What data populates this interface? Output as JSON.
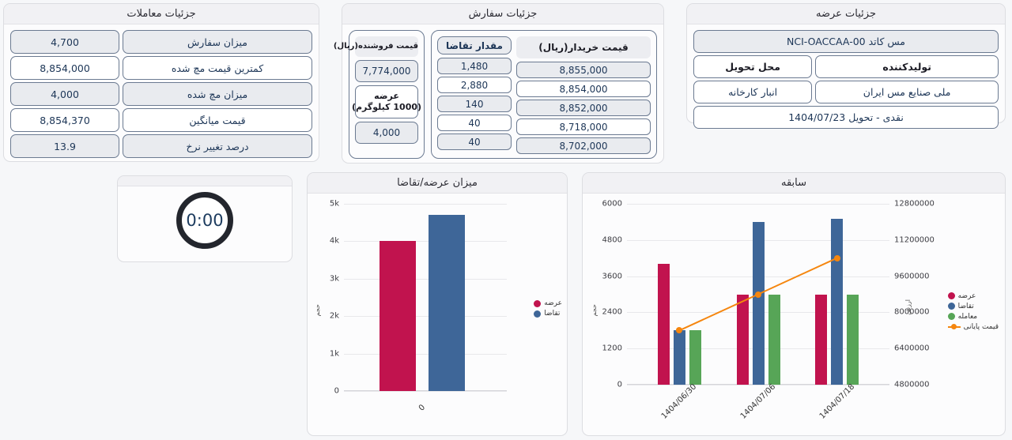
{
  "trades_panel": {
    "title": "جزئیات معاملات",
    "rows": [
      {
        "label": "میزان سفارش",
        "value": "4,700"
      },
      {
        "label": "کمترین قیمت مچ شده",
        "value": "8,854,000"
      },
      {
        "label": "میزان مچ شده",
        "value": "4,000"
      },
      {
        "label": "قیمت میانگین",
        "value": "8,854,370"
      },
      {
        "label": "درصد تغییر نرخ",
        "value": "13.9"
      }
    ]
  },
  "orders_panel": {
    "title": "جزئیات سفارش",
    "book": {
      "qty_header": "مقدار تقاضا",
      "price_header": "قیمت خریدار(ریال)",
      "rows": [
        {
          "qty": "1,480",
          "price": "8,855,000"
        },
        {
          "qty": "2,880",
          "price": "8,854,000"
        },
        {
          "qty": "140",
          "price": "8,852,000"
        },
        {
          "qty": "40",
          "price": "8,718,000"
        },
        {
          "qty": "40",
          "price": "8,702,000"
        }
      ]
    },
    "seller": {
      "price_header": "قیمت فروشنده(ریال)",
      "price_value": "7,774,000",
      "supply_header_line1": "عرضه",
      "supply_header_line2": "(1000 کیلوگرم)",
      "supply_value": "4,000"
    }
  },
  "supply_panel": {
    "title": "جزئیات عرضه",
    "commodity": "مس کاتد NCI-OACCAA-00",
    "producer_header": "تولیدکننده",
    "delivery_place_header": "محل تحویل",
    "producer": "ملی صنایع مس ایران",
    "delivery_place": "انبار کارخانه",
    "settlement": "نقدی - تحویل 1404/07/23"
  },
  "timer": {
    "value": "0:00"
  },
  "colors": {
    "supply_red": "#C1134E",
    "demand_blue": "#3E6698",
    "trade_green": "#57A557",
    "price_orange": "#F5860F"
  },
  "chart_data": [
    {
      "type": "bar",
      "title": "میزان عرضه/تقاضا",
      "categories": [
        "0"
      ],
      "series": [
        {
          "name": "عرضه",
          "color": "#C1134E",
          "values": [
            4000
          ]
        },
        {
          "name": "تقاضا",
          "color": "#3E6698",
          "values": [
            4700
          ]
        }
      ],
      "ylabel": "حجم",
      "ylim": [
        0,
        5000
      ],
      "yticks": [
        "5k",
        "4k",
        "3k",
        "2k",
        "1k",
        "0"
      ],
      "legend_position": "right",
      "grid": true
    },
    {
      "type": "bar+line",
      "title": "سابقه",
      "categories": [
        "1404/06/30",
        "1404/07/06",
        "1404/07/18"
      ],
      "series": [
        {
          "name": "عرضه",
          "kind": "bar",
          "axis": "left",
          "color": "#C1134E",
          "values": [
            4000,
            3000,
            3000
          ]
        },
        {
          "name": "تقاضا",
          "kind": "bar",
          "axis": "left",
          "color": "#3E6698",
          "values": [
            1800,
            5400,
            5500
          ]
        },
        {
          "name": "معامله",
          "kind": "bar",
          "axis": "left",
          "color": "#57A557",
          "values": [
            1800,
            3000,
            3000
          ]
        },
        {
          "name": "قیمت پایانی",
          "kind": "line",
          "axis": "right",
          "color": "#F5860F",
          "values": [
            7200000,
            8800000,
            10400000
          ]
        }
      ],
      "left_axis": {
        "label": "حجم",
        "range": [
          0,
          6000
        ],
        "ticks": [
          "6000",
          "4800",
          "3600",
          "2400",
          "1200",
          "0"
        ]
      },
      "right_axis": {
        "label": "ارزش",
        "range": [
          4800000,
          12800000
        ],
        "ticks": [
          "12800000",
          "11200000",
          "9600000",
          "8000000",
          "6400000",
          "4800000"
        ]
      },
      "legend_position": "right",
      "grid": true
    }
  ]
}
